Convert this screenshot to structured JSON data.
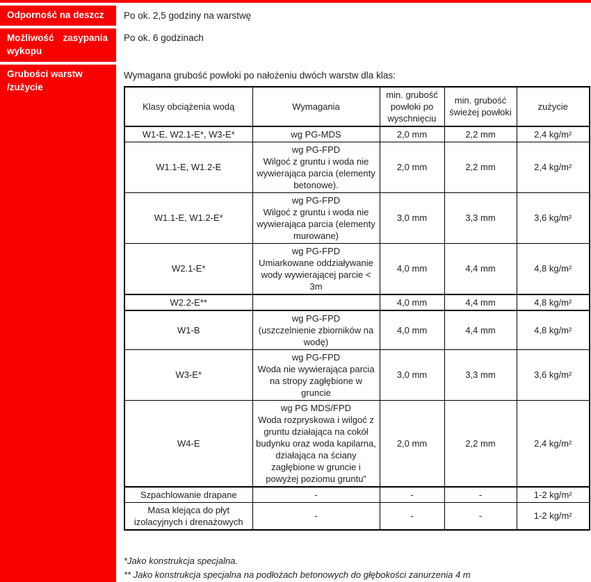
{
  "colors": {
    "red": "#f80000",
    "text": "#1f1f1f",
    "border": "#000000"
  },
  "sections": [
    {
      "label": "Odporność na deszcz",
      "value": "Po ok. 2,5 godziny na warstwę"
    },
    {
      "label": "Możliwość zasypania wykopu",
      "value": "Po ok. 6 godzinach"
    },
    {
      "label": "Grubości warstw\n/zużycie",
      "intro": "Wymagana grubość powłoki po nałożeniu dwóch warstw dla klas:"
    }
  ],
  "table": {
    "headers": {
      "klasa": "Klasy obciążenia wodą",
      "wymagania": "Wymagania",
      "dry": "min. grubość powłoki po wyschnięciu",
      "fresh": "min. grubość świeżej powłoki",
      "zuzycie": "zużycie"
    },
    "rows": [
      {
        "klasa": "W1-E, W2.1-E*, W3-E*",
        "wymagania": "wg PG-MDS",
        "dry": "2,0 mm",
        "fresh": "2,2 mm",
        "zuzycie": "2,4 kg/m²"
      },
      {
        "klasa": "W1.1-E, W1.2-E",
        "wymagania": "wg PG-FPD\nWilgoć z gruntu i woda nie wywierająca parcia (elementy betonowe).",
        "dry": "2,0 mm",
        "fresh": "2,2 mm",
        "zuzycie": "2,4 kg/m²"
      },
      {
        "klasa": "W1.1-E, W1.2-E*",
        "wymagania": "wg PG-FPD\nWilgoć z gruntu i woda nie wywierająca parcia (elementy murowane)",
        "dry": "3,0 mm",
        "fresh": "3,3 mm",
        "zuzycie": "3,6 kg/m²"
      },
      {
        "klasa": "W2.1-E*",
        "wymagania": "wg PG-FPD\nUmiarkowane oddziaływanie wody wywierającej parcie < 3m",
        "dry": "4,0 mm",
        "fresh": "4,4 mm",
        "zuzycie": "4,8 kg/m²"
      },
      {
        "klasa": "W2.2-E**",
        "wymagania": "",
        "dry": "4,0 mm",
        "fresh": "4,4 mm",
        "zuzycie": "4,8 kg/m²"
      },
      {
        "klasa": "W1-B",
        "wymagania": "wg PG-FPD\n(uszczelnienie zbiorników na wodę)",
        "dry": "4,0 mm",
        "fresh": "4,4 mm",
        "zuzycie": "4,8 kg/m²"
      },
      {
        "klasa": "W3-E*",
        "wymagania": "wg PG-FPD\nWoda nie wywierająca parcia na stropy zagłębione w gruncie",
        "dry": "3,0 mm",
        "fresh": "3,3 mm",
        "zuzycie": "3,6 kg/m²"
      },
      {
        "klasa": "W4-E",
        "wymagania": "wg PG MDS/FPD\nWoda rozpryskowa i wilgoć z gruntu działająca na cokół budynku oraz woda kapilarna, działająca na ściany zagłębione w gruncie i powyżej poziomu gruntu”",
        "dry": "2,0 mm",
        "fresh": "2,2 mm",
        "zuzycie": "2,4 kg/m²"
      },
      {
        "klasa": "Szpachlowanie drapane",
        "wymagania": "-",
        "dry": "-",
        "fresh": "-",
        "zuzycie": "1-2 kg/m²"
      },
      {
        "klasa": "Masa klejąca do płyt izolacyjnych i drenażowych",
        "wymagania": "-",
        "dry": "-",
        "fresh": "-",
        "zuzycie": "1-2 kg/m²"
      }
    ]
  },
  "footnotes": [
    "*Jako konstrukcja specjalna.",
    "** Jako konstrukcja specjalna na podłożach betonowych do głębokości zanurzenia 4 m"
  ]
}
